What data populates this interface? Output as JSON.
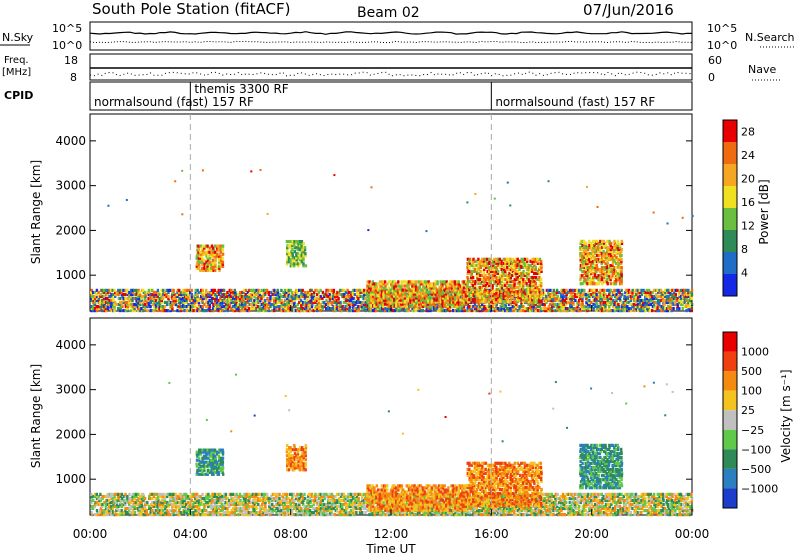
{
  "header": {
    "station": "South Pole Station (fitACF)",
    "beam": "Beam 02",
    "date": "07/Jun/2016"
  },
  "strip": {
    "nsky_label": "N.Sky",
    "nsky_ticks": [
      "10^5",
      "10^0"
    ],
    "nsearch_label": "N.Search",
    "nsearch_ticks": [
      "10^5",
      "10^0"
    ],
    "freq_label": "Freq.",
    "freq_unit": "[MHz]",
    "freq_ticks": [
      "18",
      "8"
    ],
    "nave_label": "Nave",
    "nave_ticks": [
      "60",
      "0"
    ],
    "cpid_label": "CPID"
  },
  "cpid_segments": [
    {
      "label": "normalsound (fast) 157 RF",
      "start_h": 0,
      "end_h": 16
    },
    {
      "label": "themis 3300 RF",
      "start_h": 4,
      "end_h": 16
    },
    {
      "label": "normalsound (fast) 157 RF",
      "start_h": 16,
      "end_h": 24
    }
  ],
  "chart_data": [
    {
      "type": "heatmap",
      "title": "",
      "ylabel": "Slant Range [km]",
      "xlabel": "Time UT",
      "xlim_hours": [
        0,
        24
      ],
      "ylim": [
        200,
        4600
      ],
      "yticks": [
        "1000",
        "2000",
        "3000",
        "4000"
      ],
      "colorbar": {
        "label": "Power [dB]",
        "ticks": [
          "4",
          "8",
          "12",
          "16",
          "20",
          "24",
          "28"
        ],
        "range": [
          0,
          30
        ],
        "colors": [
          "#1428e6",
          "#1e6ec8",
          "#2e8b57",
          "#6abf40",
          "#f0e020",
          "#f5a623",
          "#f06a10",
          "#e80000"
        ]
      },
      "echo_regions": [
        {
          "t0": 0.0,
          "t1": 24.0,
          "r0": 200,
          "r1": 700,
          "level": "mixed"
        },
        {
          "t0": 4.2,
          "t1": 5.3,
          "r0": 1100,
          "r1": 1700,
          "level": "high"
        },
        {
          "t0": 7.8,
          "t1": 8.6,
          "r0": 1200,
          "r1": 1800,
          "level": "mid"
        },
        {
          "t0": 11.0,
          "t1": 15.0,
          "r0": 300,
          "r1": 900,
          "level": "high"
        },
        {
          "t0": 15.0,
          "t1": 18.0,
          "r0": 400,
          "r1": 1400,
          "level": "high"
        },
        {
          "t0": 19.5,
          "t1": 21.2,
          "r0": 800,
          "r1": 1800,
          "level": "high"
        }
      ]
    },
    {
      "type": "heatmap",
      "title": "",
      "ylabel": "Slant Range [km]",
      "xlabel": "Time UT",
      "xlim_hours": [
        0,
        24
      ],
      "ylim": [
        200,
        4600
      ],
      "yticks": [
        "1000",
        "2000",
        "3000",
        "4000"
      ],
      "xticks": [
        "00:00",
        "04:00",
        "08:00",
        "12:00",
        "16:00",
        "20:00",
        "00:00"
      ],
      "colorbar": {
        "label": "Velocity [m s⁻¹]",
        "ticks": [
          "1000",
          "500",
          "100",
          "25",
          "−25",
          "−100",
          "−500",
          "−1000"
        ],
        "colors": [
          "#1c3ccc",
          "#2a7fc0",
          "#2e8b57",
          "#5fc94a",
          "#c0c0c0",
          "#f5c320",
          "#f58a10",
          "#f04010",
          "#e80000"
        ]
      },
      "echo_regions": [
        {
          "t0": 0.0,
          "t1": 24.0,
          "r0": 200,
          "r1": 700,
          "level": "mixed"
        },
        {
          "t0": 4.2,
          "t1": 5.3,
          "r0": 1100,
          "r1": 1700,
          "level": "pos"
        },
        {
          "t0": 7.8,
          "t1": 8.6,
          "r0": 1200,
          "r1": 1800,
          "level": "neg"
        },
        {
          "t0": 11.0,
          "t1": 15.0,
          "r0": 300,
          "r1": 900,
          "level": "neg"
        },
        {
          "t0": 15.0,
          "t1": 18.0,
          "r0": 400,
          "r1": 1400,
          "level": "neg"
        },
        {
          "t0": 19.5,
          "t1": 21.2,
          "r0": 800,
          "r1": 1800,
          "level": "pos"
        }
      ]
    }
  ]
}
